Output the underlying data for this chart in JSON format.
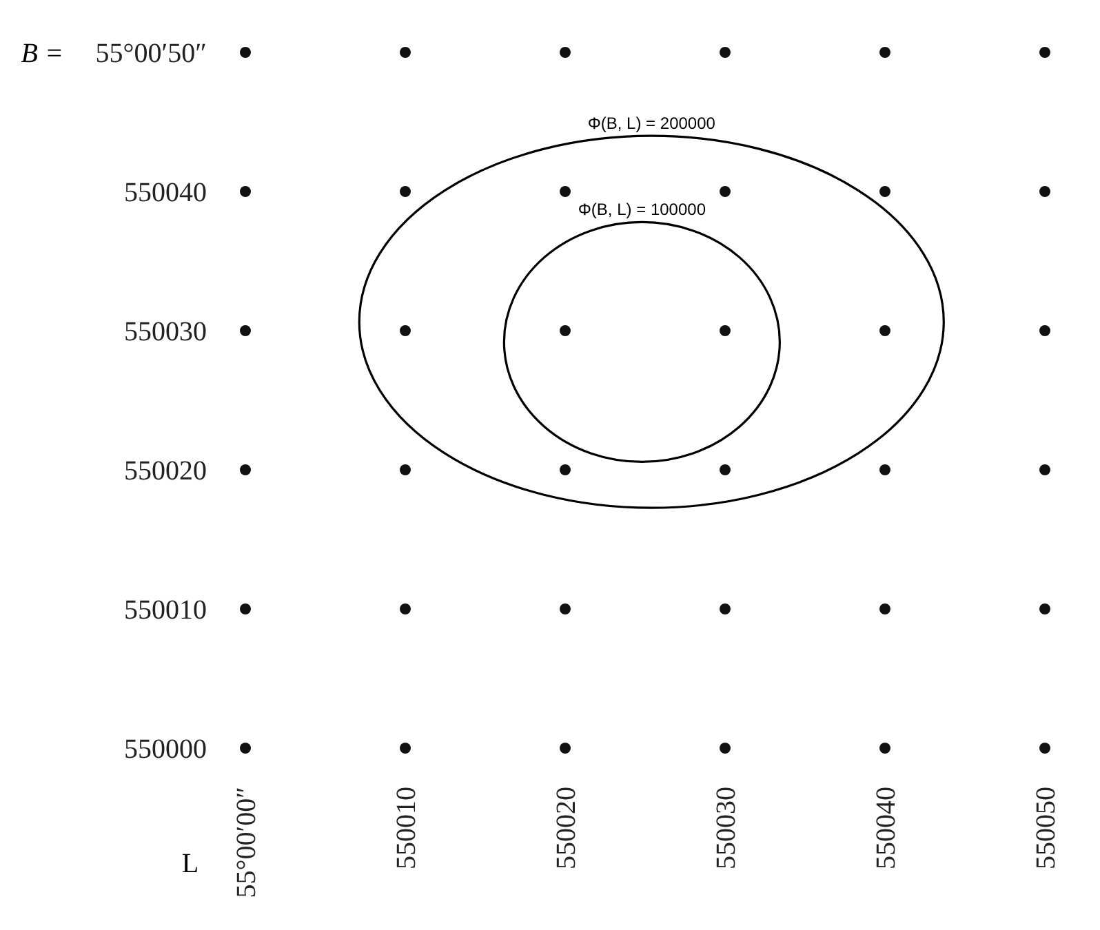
{
  "chart_data": {
    "type": "scatter",
    "xlabel": "L",
    "ylabel": "B =",
    "xlim": [
      550000,
      550050
    ],
    "ylim": [
      550000,
      550050
    ],
    "xticks": [
      {
        "value": 550000,
        "label": "55°00′00″"
      },
      550010,
      550020,
      550030,
      550040,
      550050
    ],
    "yticks": [
      550000,
      550010,
      550020,
      550030,
      550040,
      {
        "value": 550050,
        "label": "55°00′50″"
      }
    ],
    "marker": "circle",
    "annotations": [
      "Φ(B, L) = 200000",
      "Φ(B, L) = 100000"
    ],
    "series": [
      {
        "color": "#111111",
        "x": [
          550000,
          550010,
          550020,
          550030,
          550040,
          550050,
          550000,
          550010,
          550020,
          550030,
          550040,
          550050,
          550000,
          550010,
          550020,
          550030,
          550040,
          550050,
          550000,
          550010,
          550020,
          550030,
          550040,
          550050,
          550000,
          550010,
          550020,
          550030,
          550040,
          550050,
          550000,
          550010,
          550020,
          550030,
          550040,
          550050
        ],
        "values": [
          550050,
          550050,
          550050,
          550050,
          550050,
          550050,
          550040,
          550040,
          550040,
          550040,
          550040,
          550040,
          550030,
          550030,
          550030,
          550030,
          550030,
          550030,
          550020,
          550020,
          550020,
          550020,
          550020,
          550020,
          550010,
          550010,
          550010,
          550010,
          550010,
          550010,
          550000,
          550000,
          550000,
          550000,
          550000,
          550000
        ]
      }
    ]
  }
}
